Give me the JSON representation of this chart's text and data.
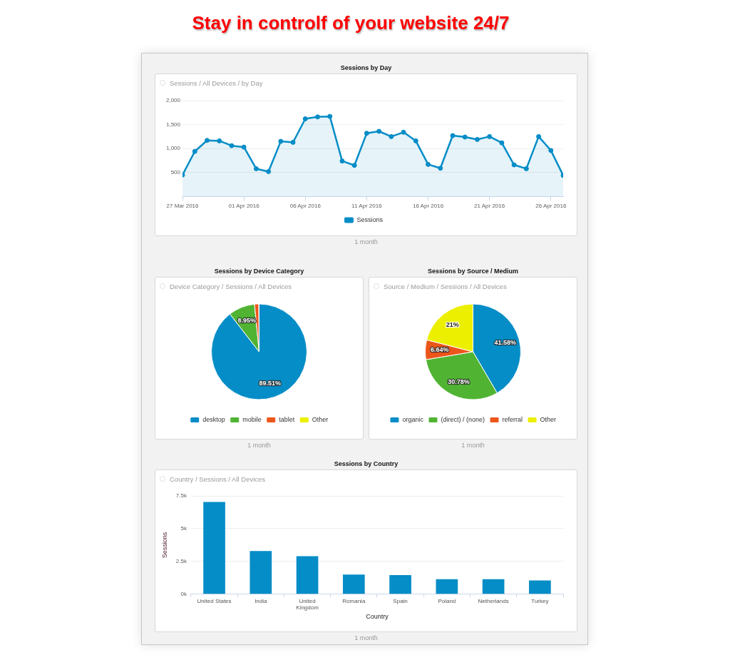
{
  "chart_data": [
    {
      "type": "other",
      "title": "Stay in controlf of your website 24/7"
    },
    {
      "type": "area",
      "title": "Sessions by Day",
      "subtitle": "Sessions / All Devices / by Day",
      "x": [
        "2016-03-27",
        "2016-03-28",
        "2016-03-29",
        "2016-03-30",
        "2016-03-31",
        "2016-04-01",
        "2016-04-02",
        "2016-04-03",
        "2016-04-04",
        "2016-04-05",
        "2016-04-06",
        "2016-04-07",
        "2016-04-08",
        "2016-04-09",
        "2016-04-10",
        "2016-04-11",
        "2016-04-12",
        "2016-04-13",
        "2016-04-14",
        "2016-04-15",
        "2016-04-16",
        "2016-04-17",
        "2016-04-18",
        "2016-04-19",
        "2016-04-20",
        "2016-04-21",
        "2016-04-22",
        "2016-04-23",
        "2016-04-24",
        "2016-04-25",
        "2016-04-26",
        "2016-04-27"
      ],
      "series": [
        {
          "name": "Sessions",
          "color": "#058dc7",
          "values": [
            450,
            940,
            1170,
            1160,
            1060,
            1030,
            580,
            520,
            1150,
            1130,
            1620,
            1660,
            1670,
            740,
            650,
            1320,
            1360,
            1250,
            1340,
            1160,
            670,
            590,
            1270,
            1240,
            1190,
            1250,
            1120,
            660,
            580,
            1250,
            960,
            440
          ]
        }
      ],
      "xlim": [
        "2016-03-27",
        "2016-04-27"
      ],
      "xticks": [
        {
          "value": "2016-03-27",
          "label": "27 Mar 2016"
        },
        {
          "value": "2016-04-01",
          "label": "01 Apr 2016"
        },
        {
          "value": "2016-04-06",
          "label": "06 Apr 2016"
        },
        {
          "value": "2016-04-11",
          "label": "11 Apr 2016"
        },
        {
          "value": "2016-04-16",
          "label": "16 Apr 2016"
        },
        {
          "value": "2016-04-21",
          "label": "21 Apr 2016"
        },
        {
          "value": "2016-04-26",
          "label": "26 Apr 2016"
        }
      ],
      "ylim": [
        0,
        2000
      ],
      "yticks": [
        500,
        {
          "value": 1000,
          "label": "1,000"
        },
        {
          "value": 1500,
          "label": "1,500"
        },
        {
          "value": 2000,
          "label": "2,000"
        }
      ],
      "grid": "y",
      "legend": "bottom",
      "marker": "circle",
      "annotations": [
        "1 month"
      ]
    },
    {
      "type": "pie",
      "title": "Sessions by Device Category",
      "subtitle": "Device Category / Sessions / All Devices",
      "categories": [
        "desktop",
        "mobile",
        "tablet",
        "Other"
      ],
      "values": [
        89.51,
        8.95,
        1.44,
        0.1
      ],
      "colors": [
        "#058dc7",
        "#50b432",
        "#ed561b",
        "#edef00"
      ],
      "value_labels": [
        "89.51%",
        "8.95%",
        null,
        null
      ],
      "legend": "bottom",
      "annotations": [
        "1 month"
      ]
    },
    {
      "type": "pie",
      "title": "Sessions by Source / Medium",
      "subtitle": "Source / Medium / Sessions / All Devices",
      "categories": [
        "organic",
        "(direct) / (none)",
        "referral",
        "Other"
      ],
      "values": [
        41.58,
        30.78,
        6.64,
        21
      ],
      "colors": [
        "#058dc7",
        "#50b432",
        "#ed561b",
        "#edef00"
      ],
      "value_labels": [
        "41.58%",
        "30.78%",
        "6.64%",
        "21%"
      ],
      "legend": "bottom",
      "annotations": [
        "1 month"
      ]
    },
    {
      "type": "bar",
      "title": "Sessions by Country",
      "subtitle": "Country / Sessions / All Devices",
      "categories": [
        "United States",
        "India",
        "United Kingdom",
        "Romania",
        "Spain",
        "Poland",
        "Netherlands",
        "Turkey"
      ],
      "values": [
        7040,
        3300,
        2900,
        1500,
        1460,
        1140,
        1140,
        1050
      ],
      "color": "#058dc7",
      "xlabel": "Country",
      "ylabel": "Sessions",
      "ylim": [
        0,
        7500
      ],
      "yticks": [
        {
          "value": 0,
          "label": "0k"
        },
        {
          "value": 2500,
          "label": "2.5k"
        },
        {
          "value": 5000,
          "label": "5k"
        },
        {
          "value": 7500,
          "label": "7.5k"
        }
      ],
      "grid": "y",
      "annotations": [
        "1 month"
      ]
    }
  ]
}
